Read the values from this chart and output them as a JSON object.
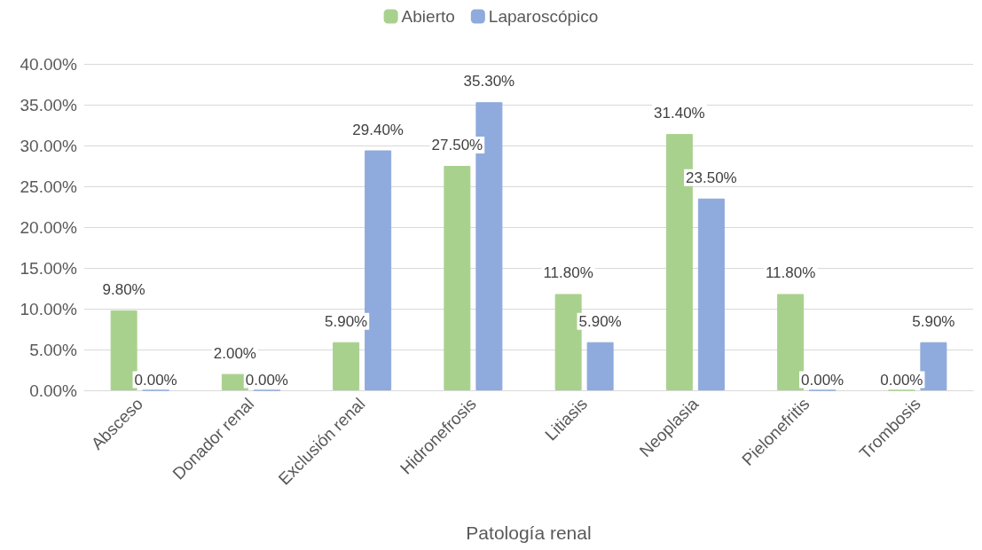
{
  "chart_data": {
    "type": "bar",
    "xlabel": "Patología renal",
    "categories": [
      "Absceso",
      "Donador renal",
      "Exclusión renal",
      "Hidronefrosis",
      "Litiasis",
      "Neoplasia",
      "Pielonefritis",
      "Trombosis"
    ],
    "series": [
      {
        "name": "Abierto",
        "color": "#a9d18e",
        "values": [
          9.8,
          2.0,
          5.9,
          27.5,
          11.8,
          31.4,
          11.8,
          0
        ],
        "value_labels": [
          "9.80%",
          "2.00%",
          "5.90%",
          "27.50%",
          "11.80%",
          "31.40%",
          "11.80%",
          "0.00%"
        ]
      },
      {
        "name": "Laparoscópico",
        "color": "#8faadc",
        "values": [
          0,
          0,
          29.4,
          35.3,
          5.9,
          23.5,
          0,
          5.9
        ],
        "value_labels": [
          "0.00%",
          "0.00%",
          "29.40%",
          "35.30%",
          "5.90%",
          "23.50%",
          "0.00%",
          "5.90%"
        ]
      }
    ],
    "ylim": [
      0,
      40
    ],
    "yticks": [
      {
        "value": 0,
        "label": "0.00%"
      },
      {
        "value": 5,
        "label": "5.00%"
      },
      {
        "value": 10,
        "label": "10.00%"
      },
      {
        "value": 15,
        "label": "15.00%"
      },
      {
        "value": 20,
        "label": "20.00%"
      },
      {
        "value": 25,
        "label": "25.00%"
      },
      {
        "value": 30,
        "label": "30.00%"
      },
      {
        "value": 35,
        "label": "35.00%"
      },
      {
        "value": 40,
        "label": "40.00%"
      }
    ],
    "grid": "y",
    "legend": "top"
  }
}
